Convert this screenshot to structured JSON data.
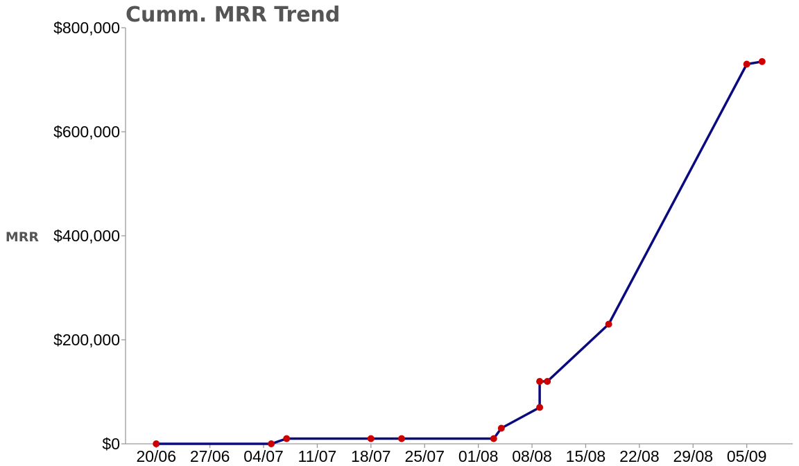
{
  "chart_data": {
    "type": "line",
    "title": "Cumm. MRR Trend",
    "xlabel": "",
    "ylabel": "MRR",
    "ylim": [
      0,
      800000
    ],
    "xlim": [
      "2016-06-16",
      "2016-09-11"
    ],
    "yticks": [
      {
        "value": 0,
        "label": "$0"
      },
      {
        "value": 200000,
        "label": "$200,000"
      },
      {
        "value": 400000,
        "label": "$400,000"
      },
      {
        "value": 600000,
        "label": "$600,000"
      },
      {
        "value": 800000,
        "label": "$800,000"
      }
    ],
    "xticks": [
      {
        "date": "2016-06-20",
        "label": "20/06"
      },
      {
        "date": "2016-06-27",
        "label": "27/06"
      },
      {
        "date": "2016-07-04",
        "label": "04/07"
      },
      {
        "date": "2016-07-11",
        "label": "11/07"
      },
      {
        "date": "2016-07-18",
        "label": "18/07"
      },
      {
        "date": "2016-07-25",
        "label": "25/07"
      },
      {
        "date": "2016-08-01",
        "label": "01/08"
      },
      {
        "date": "2016-08-08",
        "label": "08/08"
      },
      {
        "date": "2016-08-15",
        "label": "15/08"
      },
      {
        "date": "2016-08-22",
        "label": "22/08"
      },
      {
        "date": "2016-08-29",
        "label": "29/08"
      },
      {
        "date": "2016-09-05",
        "label": "05/09"
      }
    ],
    "series": [
      {
        "points": [
          {
            "x": "2016-06-20",
            "y": 0
          },
          {
            "x": "2016-07-05",
            "y": 0
          },
          {
            "x": "2016-07-07",
            "y": 10000
          },
          {
            "x": "2016-07-18",
            "y": 10000
          },
          {
            "x": "2016-07-22",
            "y": 10000
          },
          {
            "x": "2016-08-03",
            "y": 10000
          },
          {
            "x": "2016-08-04",
            "y": 30000
          },
          {
            "x": "2016-08-09",
            "y": 70000
          },
          {
            "x": "2016-08-09",
            "y": 120000
          },
          {
            "x": "2016-08-10",
            "y": 120000
          },
          {
            "x": "2016-08-18",
            "y": 230000
          },
          {
            "x": "2016-09-05",
            "y": 730000
          },
          {
            "x": "2016-09-07",
            "y": 735000
          }
        ]
      }
    ],
    "line_color": "#0a0a80",
    "marker_color": "#cc0000",
    "axis_color": "#9a9a9a",
    "grid": false,
    "legend": "none"
  }
}
